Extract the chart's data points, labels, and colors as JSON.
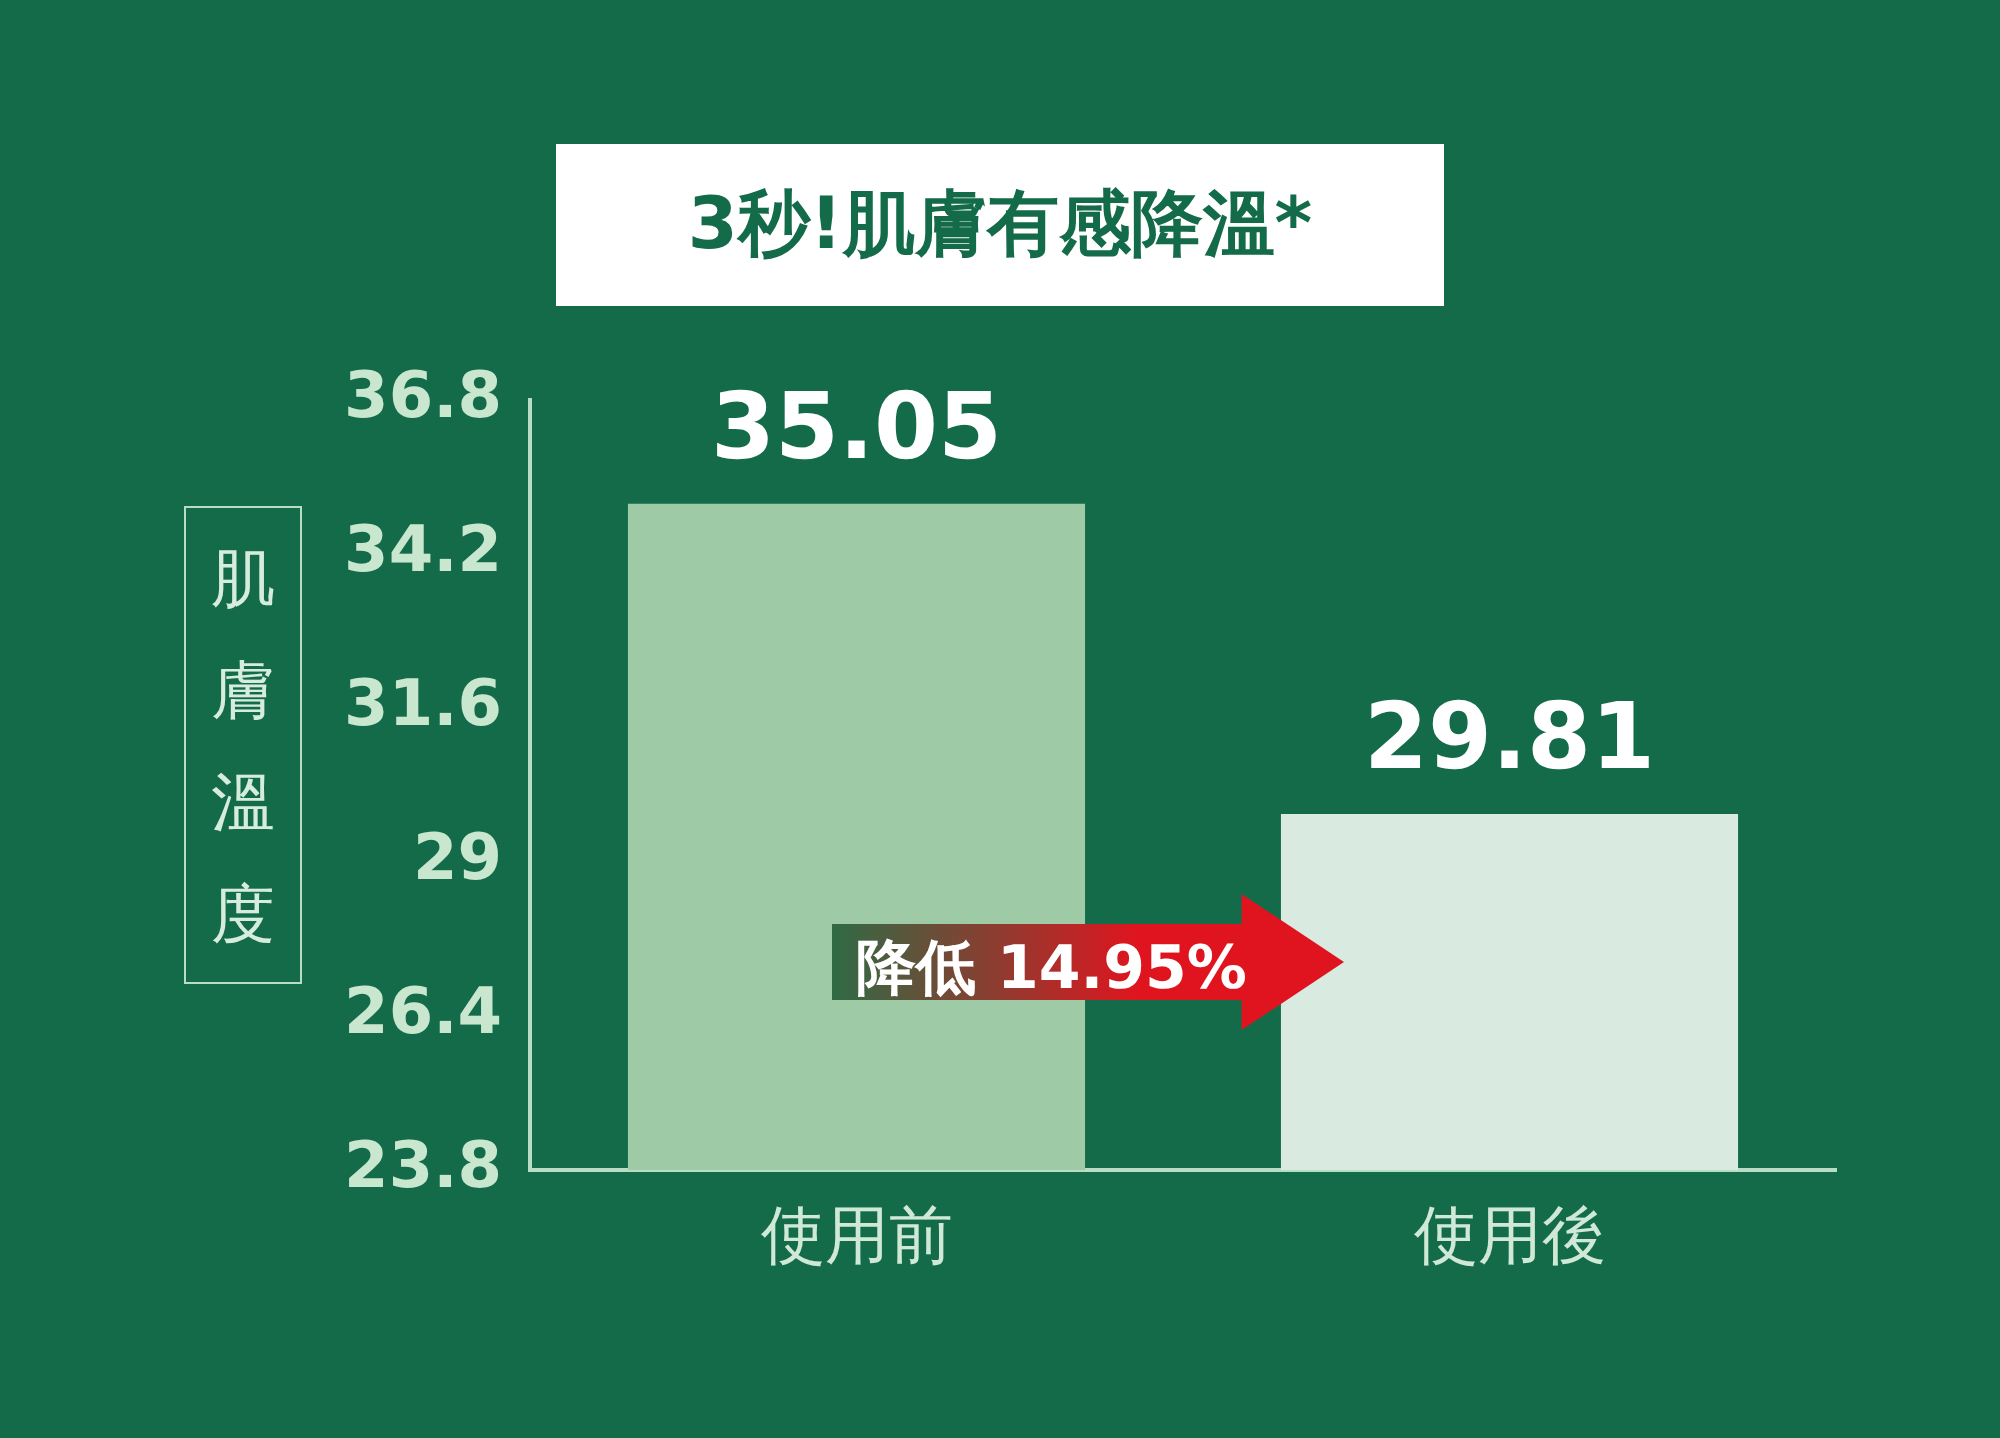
{
  "chart_data": {
    "type": "bar",
    "title": "3秒!肌膚有感降溫*",
    "ylabel": "肌膚溫度",
    "categories": [
      "使用前",
      "使用後"
    ],
    "values": [
      35.05,
      29.81
    ],
    "colors": [
      "#9fcaa6",
      "#d9ebe0"
    ],
    "ylim": [
      23.8,
      36.8
    ],
    "yticks": [
      23.8,
      26.4,
      29,
      31.6,
      34.2,
      36.8
    ],
    "data_labels": true,
    "grid": false,
    "legend": false,
    "annotations": [
      "降低 14.95%"
    ]
  }
}
